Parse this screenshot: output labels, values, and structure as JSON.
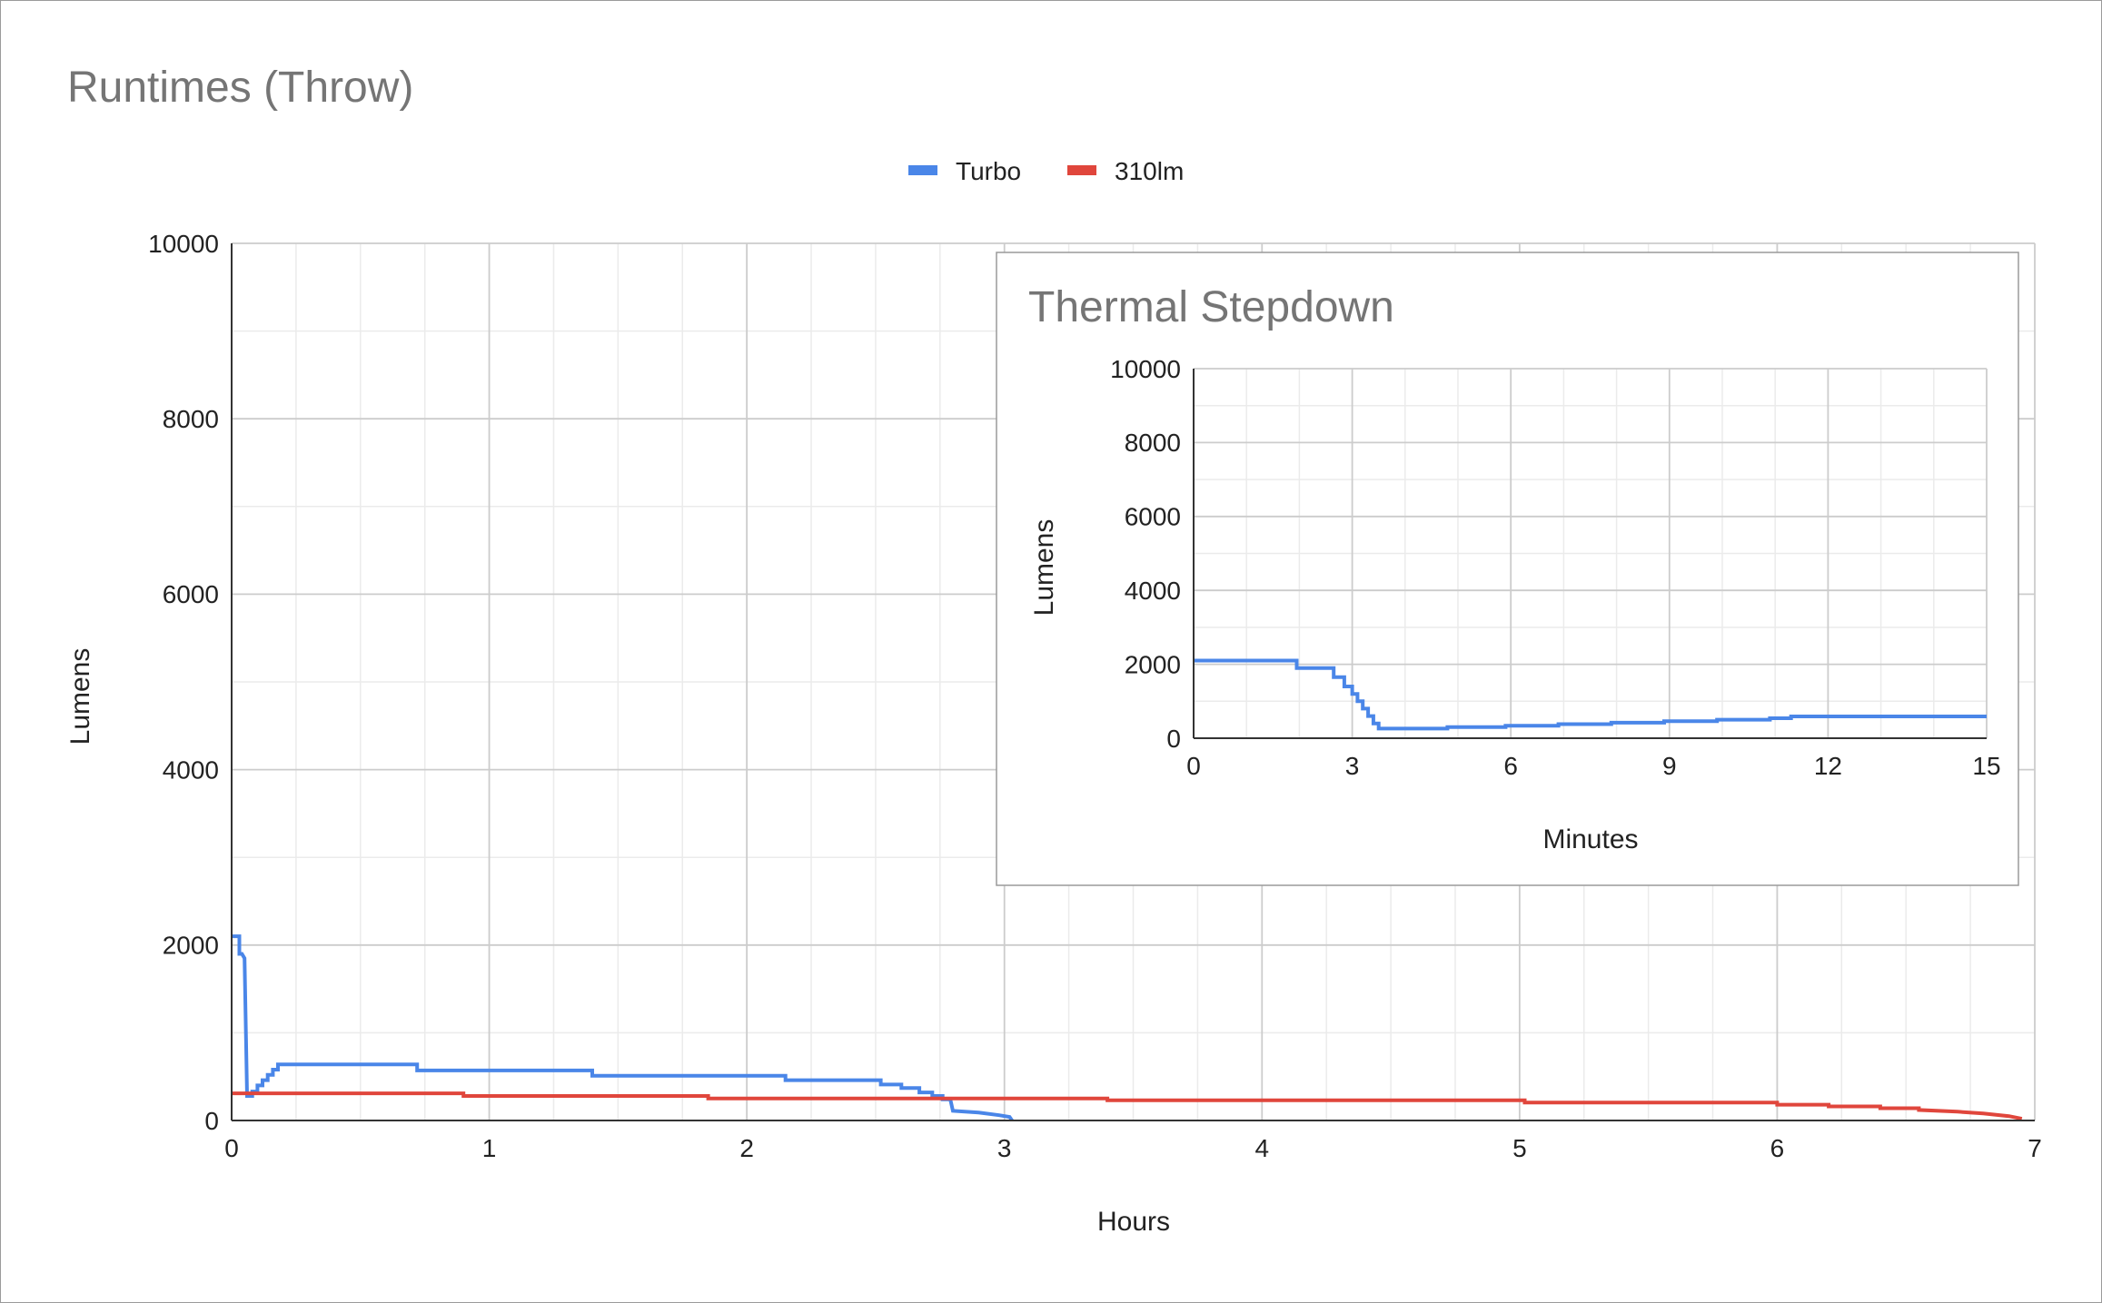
{
  "chart_data": [
    {
      "type": "line",
      "title": "Runtimes (Throw)",
      "xlabel": "Hours",
      "ylabel": "Lumens",
      "xlim": [
        0,
        7
      ],
      "ylim": [
        0,
        10000
      ],
      "x_ticks": [
        "0",
        "1",
        "2",
        "3",
        "4",
        "5",
        "6",
        "7"
      ],
      "y_ticks": [
        "0",
        "2000",
        "4000",
        "6000",
        "8000",
        "10000"
      ],
      "grid": true,
      "legend_position": "top-center",
      "series": [
        {
          "name": "Turbo",
          "color": "#4a86e8",
          "points": [
            [
              0,
              2100
            ],
            [
              0.03,
              2100
            ],
            [
              0.03,
              1900
            ],
            [
              0.04,
              1900
            ],
            [
              0.05,
              1850
            ],
            [
              0.06,
              280
            ],
            [
              0.08,
              280
            ],
            [
              0.08,
              330
            ],
            [
              0.1,
              330
            ],
            [
              0.1,
              400
            ],
            [
              0.12,
              400
            ],
            [
              0.12,
              460
            ],
            [
              0.14,
              460
            ],
            [
              0.14,
              520
            ],
            [
              0.16,
              520
            ],
            [
              0.16,
              580
            ],
            [
              0.18,
              580
            ],
            [
              0.18,
              640
            ],
            [
              0.72,
              640
            ],
            [
              0.72,
              570
            ],
            [
              1.4,
              570
            ],
            [
              1.4,
              510
            ],
            [
              2.15,
              510
            ],
            [
              2.15,
              460
            ],
            [
              2.52,
              460
            ],
            [
              2.52,
              410
            ],
            [
              2.6,
              410
            ],
            [
              2.6,
              370
            ],
            [
              2.67,
              370
            ],
            [
              2.67,
              320
            ],
            [
              2.72,
              320
            ],
            [
              2.72,
              280
            ],
            [
              2.76,
              280
            ],
            [
              2.76,
              240
            ],
            [
              2.79,
              240
            ],
            [
              2.8,
              110
            ],
            [
              2.9,
              90
            ],
            [
              2.98,
              60
            ],
            [
              3.02,
              40
            ],
            [
              3.03,
              0
            ]
          ]
        },
        {
          "name": "310lm",
          "color": "#e0463c",
          "points": [
            [
              0,
              310
            ],
            [
              0.9,
              310
            ],
            [
              0.9,
              280
            ],
            [
              1.85,
              280
            ],
            [
              1.85,
              250
            ],
            [
              3.4,
              250
            ],
            [
              3.4,
              230
            ],
            [
              5.02,
              230
            ],
            [
              5.02,
              205
            ],
            [
              6.0,
              205
            ],
            [
              6.0,
              180
            ],
            [
              6.2,
              180
            ],
            [
              6.2,
              160
            ],
            [
              6.4,
              160
            ],
            [
              6.4,
              140
            ],
            [
              6.55,
              140
            ],
            [
              6.55,
              120
            ],
            [
              6.7,
              100
            ],
            [
              6.8,
              80
            ],
            [
              6.9,
              50
            ],
            [
              6.95,
              20
            ]
          ]
        }
      ]
    },
    {
      "type": "line",
      "title": "Thermal Stepdown",
      "xlabel": "Minutes",
      "ylabel": "Lumens",
      "xlim": [
        0,
        15
      ],
      "ylim": [
        0,
        10000
      ],
      "x_ticks": [
        "0",
        "3",
        "6",
        "9",
        "12",
        "15"
      ],
      "y_ticks": [
        "0",
        "2000",
        "4000",
        "6000",
        "8000",
        "10000"
      ],
      "grid": true,
      "series": [
        {
          "name": "Turbo",
          "color": "#4a86e8",
          "points": [
            [
              0,
              2100
            ],
            [
              1.95,
              2100
            ],
            [
              1.95,
              1900
            ],
            [
              2.65,
              1900
            ],
            [
              2.65,
              1650
            ],
            [
              2.85,
              1650
            ],
            [
              2.85,
              1400
            ],
            [
              3.0,
              1400
            ],
            [
              3.0,
              1200
            ],
            [
              3.1,
              1200
            ],
            [
              3.1,
              1000
            ],
            [
              3.2,
              1000
            ],
            [
              3.2,
              800
            ],
            [
              3.3,
              800
            ],
            [
              3.3,
              600
            ],
            [
              3.4,
              600
            ],
            [
              3.4,
              400
            ],
            [
              3.5,
              400
            ],
            [
              3.5,
              260
            ],
            [
              4.8,
              260
            ],
            [
              4.8,
              300
            ],
            [
              5.9,
              300
            ],
            [
              5.9,
              340
            ],
            [
              6.9,
              340
            ],
            [
              6.9,
              380
            ],
            [
              7.9,
              380
            ],
            [
              7.9,
              420
            ],
            [
              8.9,
              420
            ],
            [
              8.9,
              460
            ],
            [
              9.9,
              460
            ],
            [
              9.9,
              500
            ],
            [
              10.9,
              500
            ],
            [
              10.9,
              540
            ],
            [
              11.3,
              540
            ],
            [
              11.3,
              590
            ],
            [
              15,
              590
            ]
          ]
        }
      ]
    }
  ]
}
